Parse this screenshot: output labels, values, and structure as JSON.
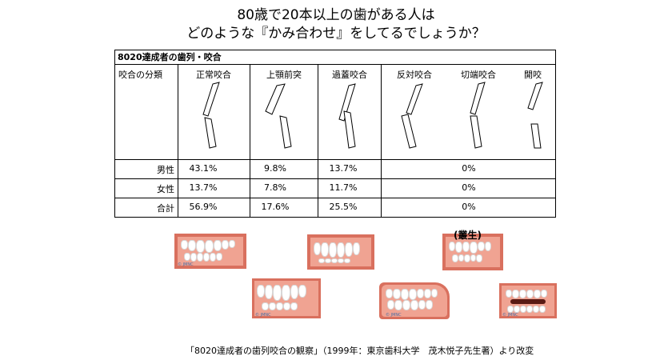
{
  "title": {
    "line1": "80歳で20本以上の歯がある人は",
    "line2": "どのような『かみ合わせ』をしてるでしょうか？"
  },
  "table": {
    "caption": "8020達成者の歯列・咬合",
    "header_label": "咬合の分類",
    "columns": [
      "正常咬合",
      "上顎前突",
      "過蓋咬合",
      "反対咬合",
      "切端咬合",
      "開咬"
    ],
    "rows": [
      {
        "label": "男性",
        "values": [
          "43.1%",
          "9.8%",
          "13.7%"
        ],
        "merged": "0%"
      },
      {
        "label": "女性",
        "values": [
          "13.7%",
          "7.8%",
          "11.7%"
        ],
        "merged": "0%"
      },
      {
        "label": "合計",
        "values": [
          "56.9%",
          "17.6%",
          "25.5%"
        ],
        "merged": "0%"
      }
    ]
  },
  "photos": {
    "sosho_label": "(叢生)",
    "watermark": "© JMNC"
  },
  "footnote": "「8020達成者の歯列咬合の観察」（1999年：東京歯科大学　茂木悦子先生著）より改変"
}
